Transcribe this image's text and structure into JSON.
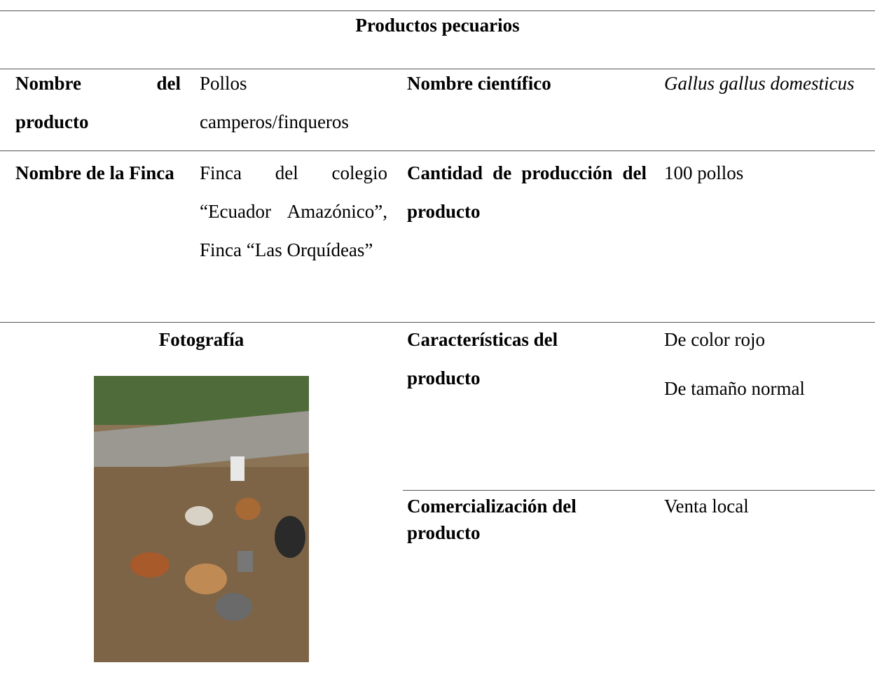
{
  "table": {
    "title": "Productos pecuarios",
    "rows": [
      [
        "Nombre del producto",
        "Pollos camperos/finqueros",
        "Nombre científico",
        "Gallus gallus domesticus"
      ],
      [
        "Nombre de la Finca",
        "Finca del colegio “Ecuador Amazónico”, Finca “Las Orquídeas”",
        "Cantidad de producción del producto",
        "100 pollos"
      ]
    ],
    "photo_label": "Fotografía",
    "characteristics": {
      "label": "Características del producto",
      "values": [
        "De color rojo",
        "De tamaño normal"
      ]
    },
    "commercialization": {
      "label": "Comercialización del producto",
      "value": "Venta local"
    }
  }
}
